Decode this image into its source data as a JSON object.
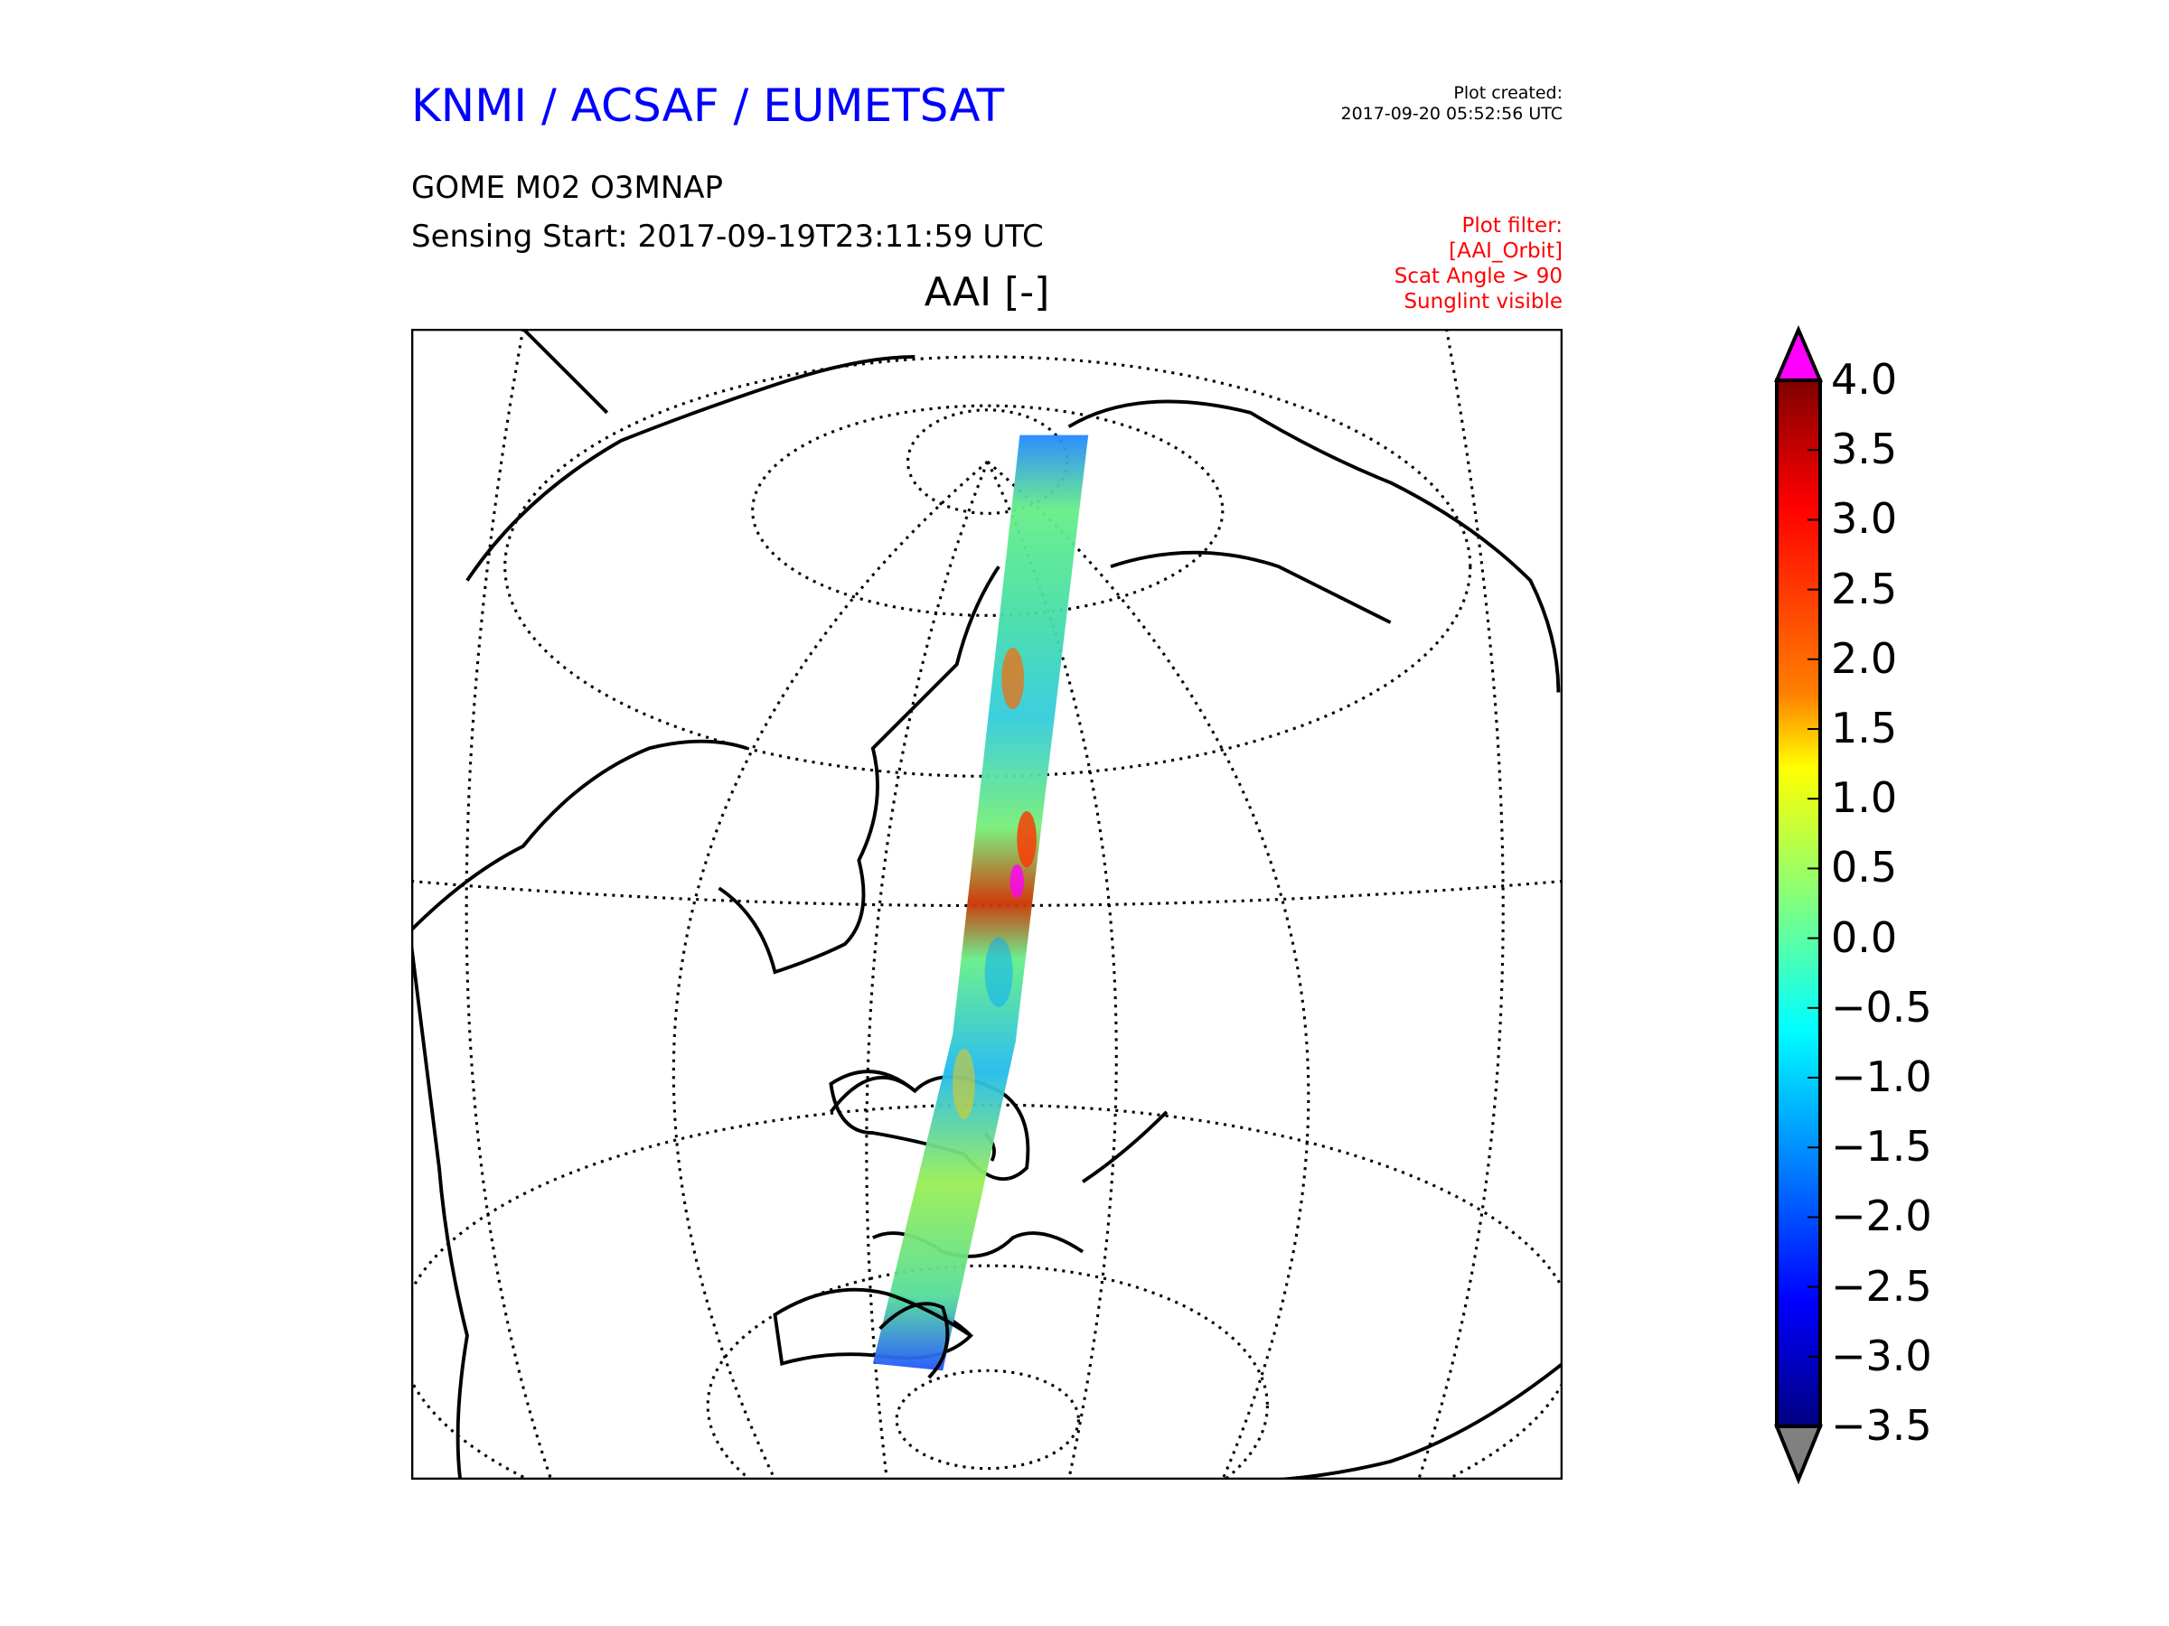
{
  "header": {
    "brand": "KNMI / ACSAF / EUMETSAT",
    "created_label": "Plot created:",
    "created_time": "2017-09-20 05:52:56 UTC",
    "product": "GOME M02 O3MNAP",
    "sensing_start": "Sensing Start: 2017-09-19T23:11:59 UTC"
  },
  "filter": {
    "lines": [
      "Plot filter:",
      "[AAI_Orbit]",
      "Scat Angle > 90",
      "Sunglint visible"
    ],
    "color": "#ff0000"
  },
  "map": {
    "title": "AAI [-]",
    "projection": "orthographic",
    "swath_colors": [
      "#7fff7f",
      "#33ffcc",
      "#00aaff",
      "#ccff33",
      "#ff4400"
    ]
  },
  "colorbar": {
    "ticks": [
      "4.0",
      "3.5",
      "3.0",
      "2.5",
      "2.0",
      "1.5",
      "1.0",
      "0.5",
      "0.0",
      "−0.5",
      "−1.0",
      "−1.5",
      "−2.0",
      "−2.5",
      "−3.0",
      "−3.5"
    ],
    "min": -3.5,
    "max": 4.0,
    "over_color": "#ff00ff",
    "under_color": "#808080",
    "colormap": "jet"
  }
}
